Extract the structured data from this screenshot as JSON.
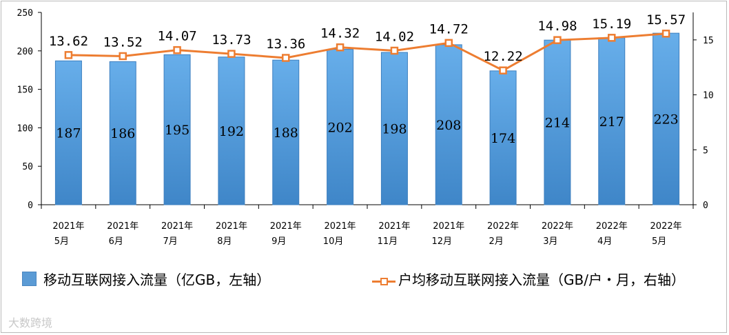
{
  "chart_data": {
    "type": "bar",
    "categories": [
      "2021年\n5月",
      "2021年\n6月",
      "2021年\n7月",
      "2021年\n8月",
      "2021年\n9月",
      "2021年\n10月",
      "2021年\n11月",
      "2021年\n12月",
      "2022年\n2月",
      "2022年\n3月",
      "2022年\n4月",
      "2022年\n5月"
    ],
    "series": [
      {
        "name": "移动互联网接入流量（亿GB，左轴）",
        "type": "bar",
        "axis": "left",
        "color": "#5b9bd5",
        "values": [
          187,
          186,
          195,
          192,
          188,
          202,
          198,
          208,
          174,
          214,
          217,
          223
        ]
      },
      {
        "name": "户均移动互联网接入流量（GB/户・月，右轴）",
        "type": "line",
        "axis": "right",
        "color": "#ed7d31",
        "values": [
          13.62,
          13.52,
          14.07,
          13.73,
          13.36,
          14.32,
          14.02,
          14.72,
          12.22,
          14.98,
          15.19,
          15.57
        ]
      }
    ],
    "bar_labels": [
      "187",
      "186",
      "195",
      "192",
      "188",
      "202",
      "198",
      "208",
      "174",
      "214",
      "217",
      "223"
    ],
    "line_labels": [
      "13.62",
      "13.52",
      "14.07",
      "13.73",
      "13.36",
      "14.32",
      "14.02",
      "14.72",
      "12.22",
      "14.98",
      "15.19",
      "15.57"
    ],
    "y_left": {
      "min": 0,
      "max": 250,
      "ticks": [
        "0",
        "50",
        "100",
        "150",
        "200",
        "250"
      ]
    },
    "y_right": {
      "min": 0,
      "max": 17.5,
      "ticks": [
        "0",
        "5",
        "10",
        "15"
      ]
    },
    "grid": false,
    "legend_position": "bottom"
  },
  "legend": {
    "bar_label": "移动互联网接入流量（亿GB，左轴）",
    "line_label": "户均移动互联网接入流量（GB/户・月，右轴）"
  },
  "watermark": "大数跨境"
}
